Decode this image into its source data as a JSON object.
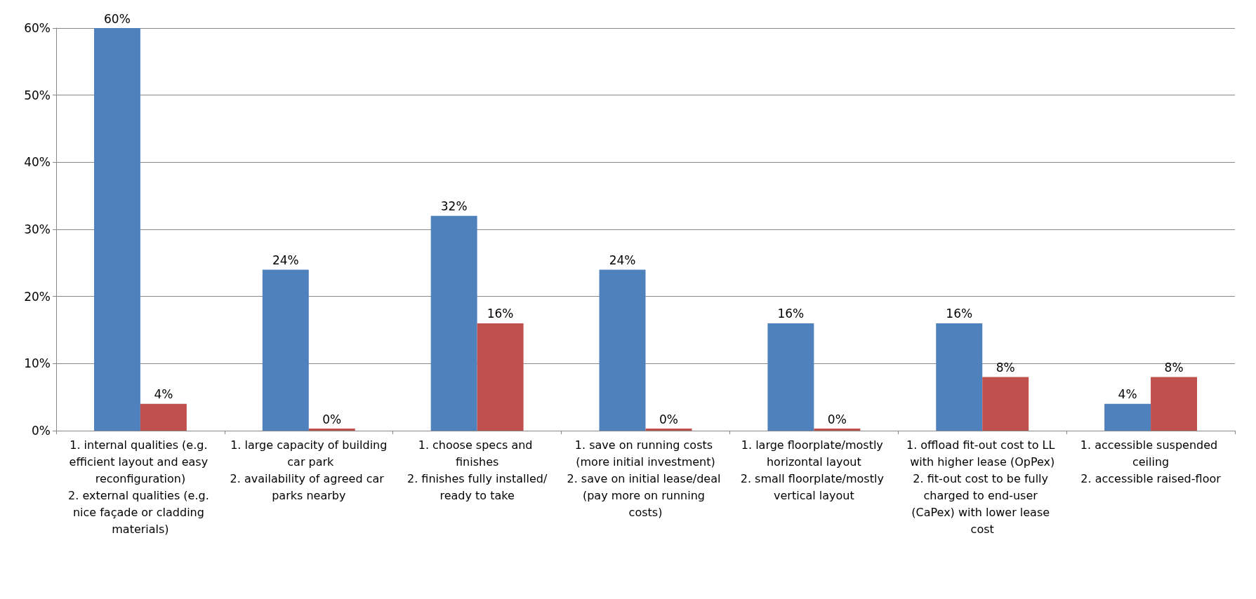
{
  "chart_data": {
    "type": "bar",
    "categories": [
      "1. internal qualities (e.g. efficient layout and easy reconfiguration)\n2. external qualities (e.g. nice façade or cladding materials)",
      "1. large capacity of building car park\n2. availability of agreed car parks nearby",
      "1. choose specs and finishes\n2. finishes fully installed/ready to take",
      "1. save on running costs (more initial investment)\n2. save on initial lease/deal (pay more on running costs)",
      "1. large floorplate/mostly horizontal layout\n2. small floorplate/mostly vertical layout",
      "1. offload fit-out cost to LL with higher lease (OpPex)\n2. fit-out cost to be fully charged to end-user (CaPex) with lower lease cost",
      "1. accessible suspended ceiling\n2. accessible raised-floor"
    ],
    "series": [
      {
        "color": "#4f81bd",
        "values": [
          60,
          24,
          32,
          24,
          16,
          16,
          4
        ],
        "value_labels": [
          "60%",
          "24%",
          "32%",
          "24%",
          "16%",
          "16%",
          "4%"
        ]
      },
      {
        "color": "#c0504d",
        "values": [
          4,
          0,
          16,
          0,
          0,
          8,
          8
        ],
        "value_labels": [
          "4%",
          "0%",
          "16%",
          "0%",
          "0%",
          "8%",
          "8%"
        ]
      }
    ],
    "ylim": [
      0,
      60
    ],
    "yticks": [
      {
        "value": 0,
        "label": "0%"
      },
      {
        "value": 10,
        "label": "10%"
      },
      {
        "value": 20,
        "label": "20%"
      },
      {
        "value": 30,
        "label": "30%"
      },
      {
        "value": 40,
        "label": "40%"
      },
      {
        "value": 50,
        "label": "50%"
      },
      {
        "value": 60,
        "label": "60%"
      }
    ],
    "grid": "y"
  }
}
